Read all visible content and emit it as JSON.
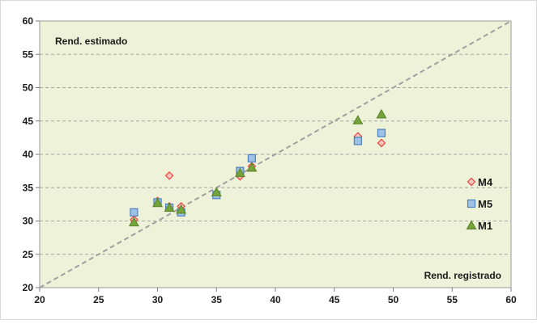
{
  "chart_data": {
    "type": "scatter",
    "title": "",
    "xlabel": "Rend. registrado",
    "ylabel": "Rend. estimado",
    "xlim": [
      20,
      60
    ],
    "ylim": [
      20,
      60
    ],
    "x_ticks": [
      20,
      25,
      30,
      35,
      40,
      45,
      50,
      55,
      60
    ],
    "y_ticks": [
      20,
      25,
      30,
      35,
      40,
      45,
      50,
      55,
      60
    ],
    "grid": "horizontal-dashed",
    "legend_position": "right",
    "reference_line": {
      "from": [
        20,
        20
      ],
      "to": [
        60,
        60
      ],
      "style": "dashed",
      "color": "#a0a0a0"
    },
    "plot_background": "#eef2d9",
    "series": [
      {
        "name": "M4",
        "marker": "diamond",
        "color": "#f04040",
        "fill": "#f7c8c0",
        "points": [
          [
            28,
            30.2
          ],
          [
            30,
            33.0
          ],
          [
            31,
            36.8
          ],
          [
            31,
            32.2
          ],
          [
            32,
            32.2
          ],
          [
            35,
            34.0
          ],
          [
            37,
            36.7
          ],
          [
            38,
            38.2
          ],
          [
            47,
            42.7
          ],
          [
            49,
            41.7
          ]
        ]
      },
      {
        "name": "M5",
        "marker": "square",
        "color": "#4f81bd",
        "fill": "#9ec2e6",
        "points": [
          [
            28,
            31.3
          ],
          [
            30,
            32.8
          ],
          [
            31,
            32.0
          ],
          [
            32,
            31.3
          ],
          [
            35,
            33.9
          ],
          [
            37,
            37.5
          ],
          [
            38,
            39.4
          ],
          [
            47,
            42.0
          ],
          [
            49,
            43.2
          ]
        ]
      },
      {
        "name": "M1",
        "marker": "triangle",
        "color": "#5e8a2e",
        "fill": "#77a33b",
        "points": [
          [
            28,
            29.8
          ],
          [
            30,
            32.7
          ],
          [
            31,
            32.0
          ],
          [
            32,
            31.7
          ],
          [
            35,
            34.3
          ],
          [
            37,
            37.2
          ],
          [
            38,
            38.0
          ],
          [
            47,
            45.1
          ],
          [
            49,
            46.0
          ]
        ]
      }
    ]
  }
}
